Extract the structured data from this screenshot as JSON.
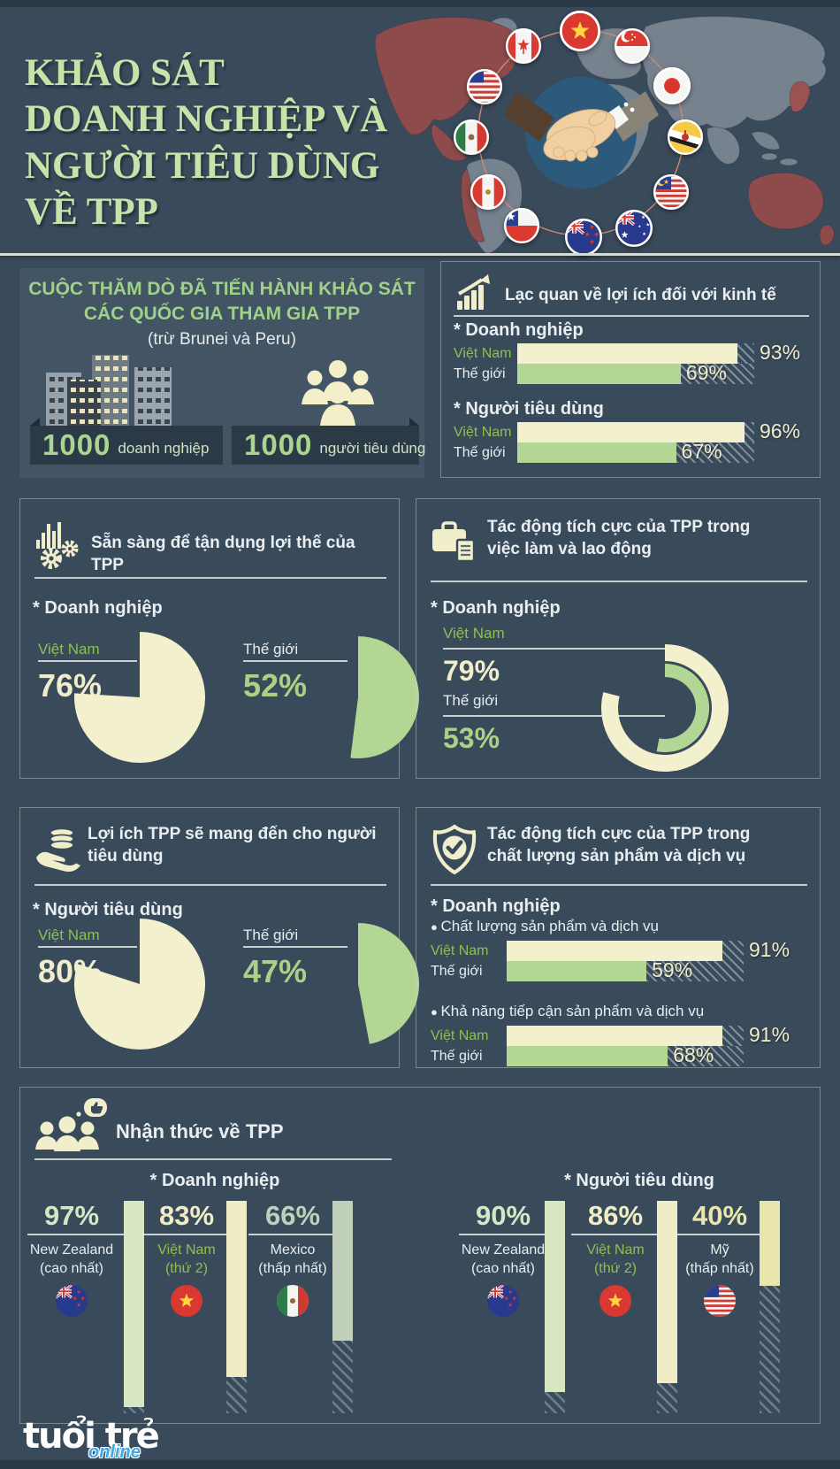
{
  "page": {
    "bg": "#394a5b",
    "accent_green": "#8cc152",
    "light_green_title": "#c6e3a9",
    "cream": "#f3f0cd",
    "bar_green": "#b2d795"
  },
  "header": {
    "title_lines": [
      "KHẢO SÁT",
      "DOANH NGHIỆP VÀ",
      "NGƯỜI TIÊU DÙNG",
      "VỀ TPP"
    ],
    "map_flags": [
      "canada",
      "vietnam",
      "singapore",
      "japan",
      "usa",
      "mexico",
      "brunei",
      "peru",
      "malaysia",
      "chile",
      "australia",
      "new-zealand"
    ],
    "center_icon": "handshake-icon"
  },
  "survey_panel": {
    "title_line1": "CUỘC THĂM DÒ ĐÃ TIẾN HÀNH KHẢO SÁT",
    "title_line2": "CÁC QUỐC GIA THAM GIA TPP",
    "subtitle": "(trừ Brunei và Peru)",
    "stats": [
      {
        "value": "1000",
        "label": "doanh nghiệp"
      },
      {
        "value": "1000",
        "label": "người tiêu dùng"
      }
    ]
  },
  "economy_panel": {
    "title": "Lạc quan về lợi ích đối với kinh tế",
    "groups": [
      {
        "label": "* Doanh nghiệp",
        "bars": [
          {
            "label": "Việt Nam",
            "value": 93,
            "color": "cream"
          },
          {
            "label": "Thế giới",
            "value": 69,
            "color": "green"
          }
        ]
      },
      {
        "label": "* Người tiêu dùng",
        "bars": [
          {
            "label": "Việt Nam",
            "value": 96,
            "color": "cream"
          },
          {
            "label": "Thế giới",
            "value": 67,
            "color": "green"
          }
        ]
      }
    ]
  },
  "readiness_panel": {
    "title": "Sẵn sàng để tận dụng lợi thế của TPP",
    "group_label": "* Doanh nghiệp",
    "pies": [
      {
        "label": "Việt Nam",
        "value": 76,
        "color": "cream"
      },
      {
        "label": "Thế giới",
        "value": 52,
        "color": "green"
      }
    ]
  },
  "jobs_panel": {
    "title_line1": "Tác động tích cực của TPP trong",
    "title_line2": "việc làm và lao động",
    "group_label": "* Doanh nghiệp",
    "rings": [
      {
        "label": "Việt Nam",
        "value": 79,
        "color": "cream"
      },
      {
        "label": "Thế giới",
        "value": 53,
        "color": "green"
      }
    ]
  },
  "consumer_panel": {
    "title_line1": "Lợi ích TPP sẽ mang đến cho người",
    "title_line2": "tiêu dùng",
    "group_label": "* Người tiêu dùng",
    "pies": [
      {
        "label": "Việt Nam",
        "value": 80,
        "color": "cream"
      },
      {
        "label": "Thế giới",
        "value": 47,
        "color": "green"
      }
    ]
  },
  "quality_panel": {
    "title_line1": "Tác động tích cực của TPP trong",
    "title_line2": "chất lượng sản phẩm và dịch vụ",
    "group_label": "* Doanh nghiệp",
    "sections": [
      {
        "bullet": "Chất lượng sản phẩm và dịch vụ",
        "bars": [
          {
            "label": "Việt Nam",
            "value": 91,
            "color": "cream"
          },
          {
            "label": "Thế giới",
            "value": 59,
            "color": "green"
          }
        ]
      },
      {
        "bullet": "Khả năng tiếp cận sản phẩm và dịch vụ",
        "bars": [
          {
            "label": "Việt Nam",
            "value": 91,
            "color": "cream"
          },
          {
            "label": "Thế giới",
            "value": 68,
            "color": "green"
          }
        ]
      }
    ]
  },
  "awareness_panel": {
    "title": "Nhận thức về TPP",
    "groups": [
      {
        "label": "* Doanh nghiệp",
        "items": [
          {
            "value": "97%",
            "country": "New Zealand",
            "note": "(cao nhất)",
            "flag": "new-zealand",
            "pct": 97,
            "bar_color": "#d7e7c4",
            "vn": false
          },
          {
            "value": "83%",
            "country": "Việt Nam",
            "note": "(thứ 2)",
            "flag": "vietnam",
            "pct": 83,
            "bar_color": "#f0ecc6",
            "vn": true
          },
          {
            "value": "66%",
            "country": "Mexico",
            "note": "(thấp nhất)",
            "flag": "mexico",
            "pct": 66,
            "bar_color": "#c0d0bb",
            "vn": false
          }
        ]
      },
      {
        "label": "* Người tiêu dùng",
        "items": [
          {
            "value": "90%",
            "country": "New Zealand",
            "note": "(cao nhất)",
            "flag": "new-zealand",
            "pct": 90,
            "bar_color": "#d7e7c4",
            "vn": false
          },
          {
            "value": "86%",
            "country": "Việt Nam",
            "note": "(thứ 2)",
            "flag": "vietnam",
            "pct": 86,
            "bar_color": "#f0ecc6",
            "vn": true
          },
          {
            "value": "40%",
            "country": "Mỹ",
            "note": "(thấp nhất)",
            "flag": "usa",
            "pct": 40,
            "bar_color": "#e9e5ab",
            "vn": false
          }
        ]
      }
    ]
  },
  "footer": {
    "logo_main": "tuổi trẻ",
    "logo_sub": "online"
  },
  "icons": [
    "trend-chart-icon",
    "bars-gears-icon",
    "briefcase-document-icon",
    "coins-hand-icon",
    "shield-check-icon",
    "people-thumbsup-icon",
    "buildings-icon",
    "people-icon",
    "handshake-icon"
  ],
  "chart_data": [
    {
      "type": "bar",
      "title": "Lạc quan về lợi ích đối với kinh tế",
      "unit": "%",
      "categories": [
        "Việt Nam",
        "Thế giới"
      ],
      "series": [
        {
          "name": "Doanh nghiệp",
          "values": [
            93,
            69
          ]
        },
        {
          "name": "Người tiêu dùng",
          "values": [
            96,
            67
          ]
        }
      ],
      "xlim": [
        0,
        100
      ]
    },
    {
      "type": "pie",
      "title": "Sẵn sàng để tận dụng lợi thế của TPP (Doanh nghiệp)",
      "unit": "%",
      "categories": [
        "Việt Nam",
        "Thế giới"
      ],
      "values": [
        76,
        52
      ]
    },
    {
      "type": "pie",
      "title": "Tác động tích cực của TPP trong việc làm và lao động (Doanh nghiệp, donut)",
      "unit": "%",
      "categories": [
        "Việt Nam",
        "Thế giới"
      ],
      "values": [
        79,
        53
      ]
    },
    {
      "type": "pie",
      "title": "Lợi ích TPP sẽ mang đến cho người tiêu dùng (Người tiêu dùng)",
      "unit": "%",
      "categories": [
        "Việt Nam",
        "Thế giới"
      ],
      "values": [
        80,
        47
      ]
    },
    {
      "type": "bar",
      "title": "Tác động tích cực của TPP trong chất lượng sản phẩm và dịch vụ (Doanh nghiệp)",
      "unit": "%",
      "categories": [
        "Việt Nam",
        "Thế giới"
      ],
      "series": [
        {
          "name": "Chất lượng sản phẩm và dịch vụ",
          "values": [
            91,
            59
          ]
        },
        {
          "name": "Khả năng tiếp cận sản phẩm và dịch vụ",
          "values": [
            91,
            68
          ]
        }
      ],
      "xlim": [
        0,
        100
      ]
    },
    {
      "type": "bar",
      "title": "Nhận thức về TPP",
      "unit": "%",
      "series": [
        {
          "name": "Doanh nghiệp",
          "categories": [
            "New Zealand (cao nhất)",
            "Việt Nam (thứ 2)",
            "Mexico (thấp nhất)"
          ],
          "values": [
            97,
            83,
            66
          ]
        },
        {
          "name": "Người tiêu dùng",
          "categories": [
            "New Zealand (cao nhất)",
            "Việt Nam (thứ 2)",
            "Mỹ (thấp nhất)"
          ],
          "values": [
            90,
            86,
            40
          ]
        }
      ],
      "ylim": [
        0,
        100
      ]
    }
  ]
}
